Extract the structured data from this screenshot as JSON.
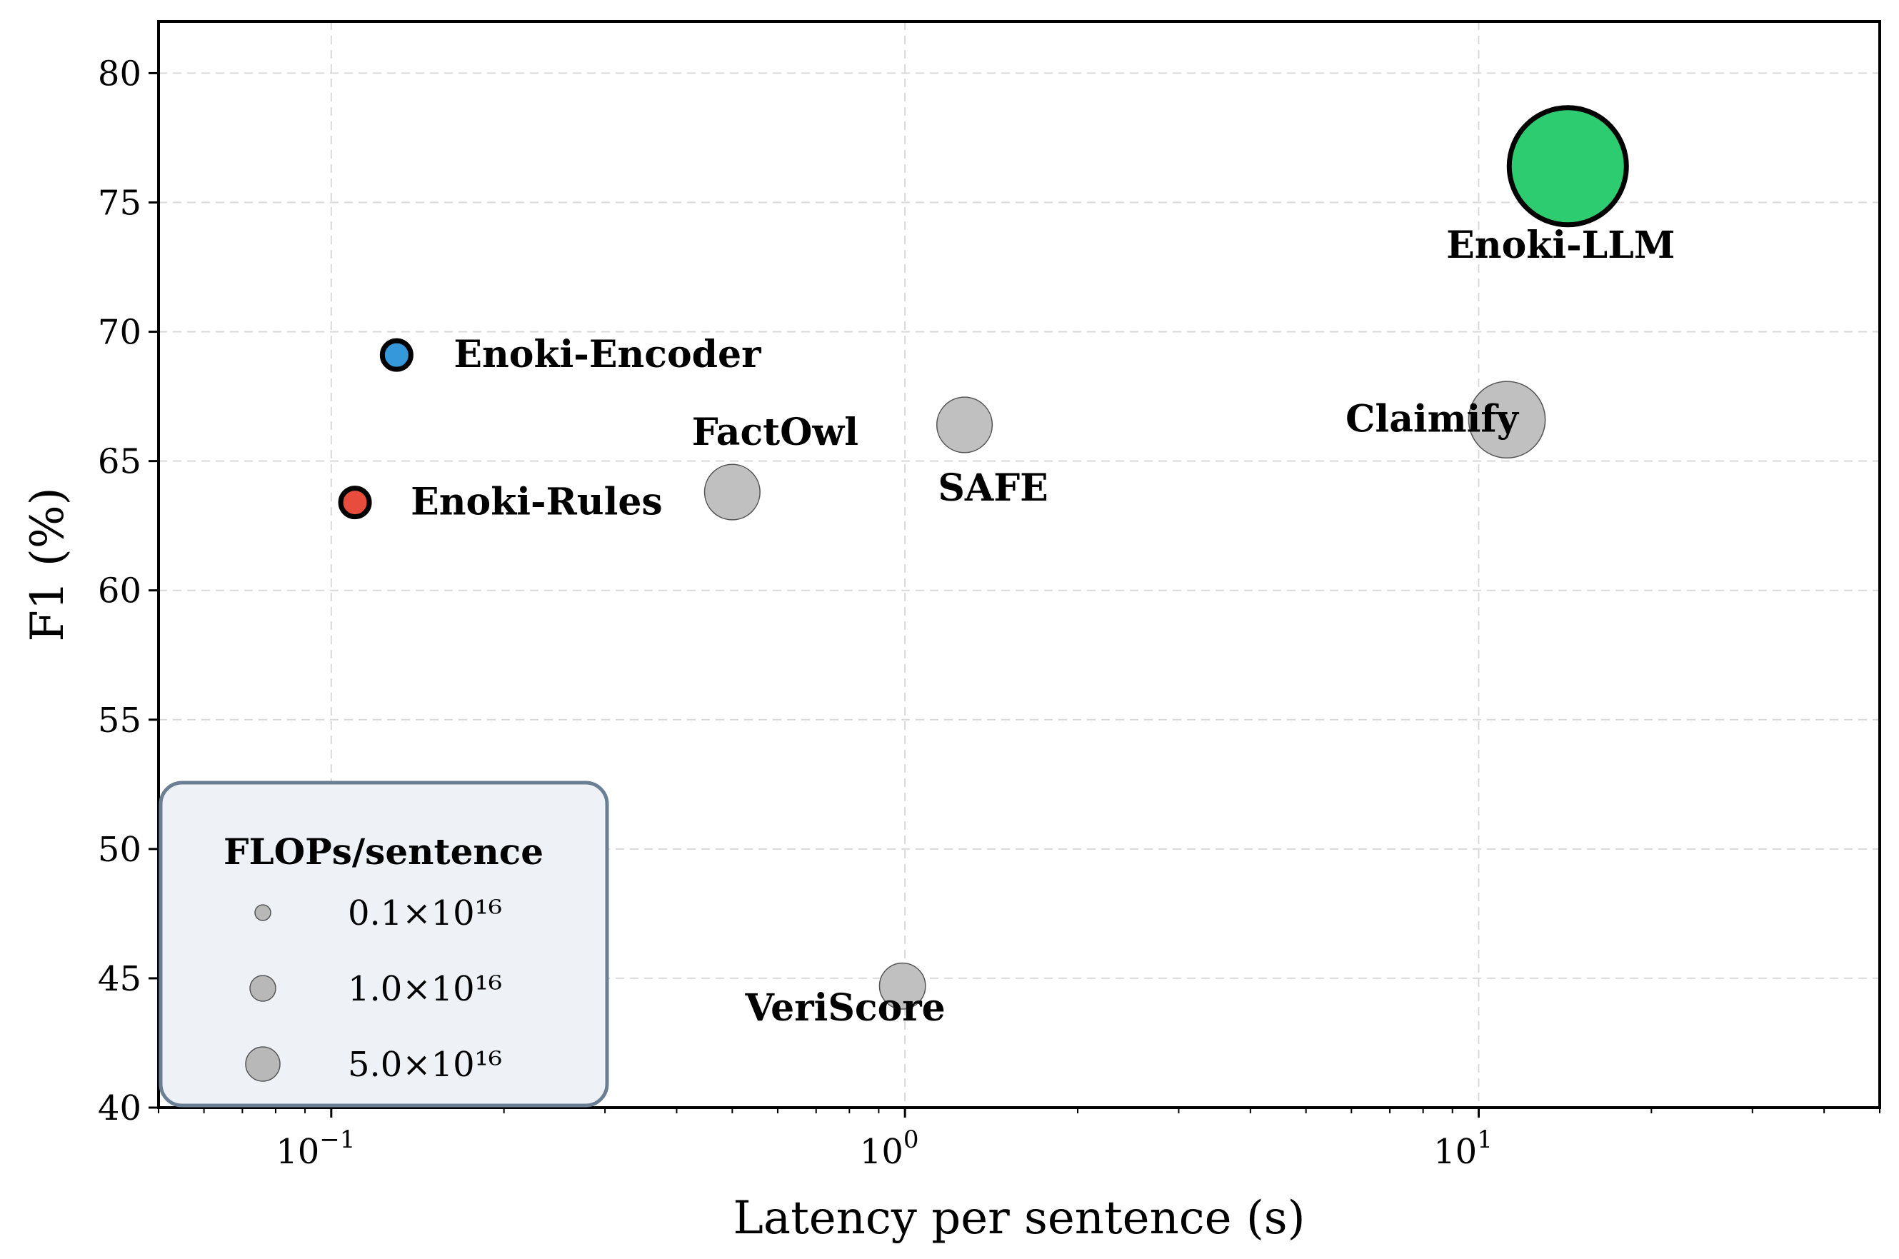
{
  "chart_data": {
    "type": "scatter",
    "title": "",
    "xlabel": "Latency per sentence (s)",
    "ylabel": "F1 (%)",
    "xscale": "log",
    "xlim": [
      0.05,
      50
    ],
    "ylim": [
      40,
      82
    ],
    "grid": true,
    "x_ticks": [
      {
        "value": 0.1,
        "base": "10",
        "exp": "−1"
      },
      {
        "value": 1,
        "base": "10",
        "exp": "0"
      },
      {
        "value": 10,
        "base": "10",
        "exp": "1"
      }
    ],
    "y_ticks": [
      40,
      45,
      50,
      55,
      60,
      65,
      70,
      75,
      80
    ],
    "points": [
      {
        "label": "Enoki-LLM",
        "x": 14.3,
        "y": 76.4,
        "flops": 7.0,
        "color": "#2ecc71",
        "ours": true
      },
      {
        "label": "Enoki-Encoder",
        "x": 0.13,
        "y": 69.1,
        "flops": 0.03,
        "color": "#3498db",
        "ours": true
      },
      {
        "label": "Enoki-Rules",
        "x": 0.11,
        "y": 63.4,
        "flops": 0.03,
        "color": "#e74c3c",
        "ours": true
      },
      {
        "label": "FactOwl",
        "x": 0.5,
        "y": 63.8,
        "flops": 1.8,
        "color": "#c0c0c0",
        "ours": false
      },
      {
        "label": "SAFE",
        "x": 1.27,
        "y": 66.4,
        "flops": 1.8,
        "color": "#c0c0c0",
        "ours": false
      },
      {
        "label": "Claimify",
        "x": 11.2,
        "y": 66.6,
        "flops": 5.5,
        "color": "#c0c0c0",
        "ours": false
      },
      {
        "label": "VeriScore",
        "x": 0.99,
        "y": 44.7,
        "flops": 0.8,
        "color": "#c0c0c0",
        "ours": false
      }
    ],
    "legend": {
      "title": "FLOPs/sentence",
      "placement": "lower-left",
      "entries": [
        {
          "label": "0.1×10¹⁶",
          "flops": 0.1
        },
        {
          "label": "1.0×10¹⁶",
          "flops": 1.0
        },
        {
          "label": "5.0×10¹⁶",
          "flops": 5.0
        }
      ]
    }
  }
}
